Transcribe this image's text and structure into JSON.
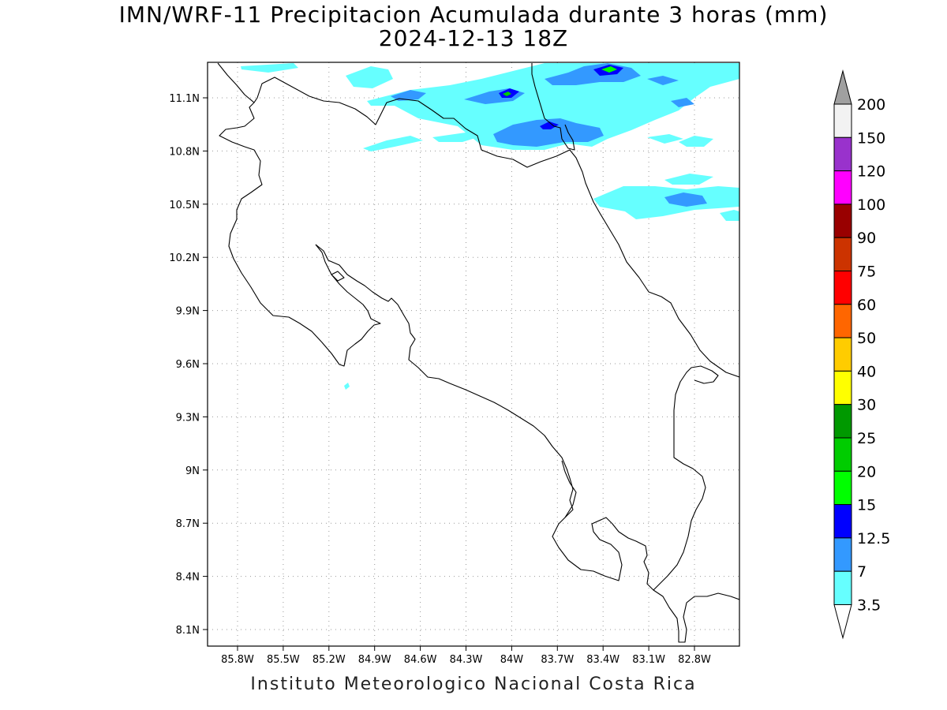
{
  "header": {
    "title": "IMN/WRF-11 Precipitacion Acumulada durante 3 horas (mm)",
    "subtitle": "2024-12-13 18Z"
  },
  "footer": {
    "credit": "Instituto Meteorologico Nacional Costa Rica"
  },
  "map": {
    "lon_ticks": [
      "85.8W",
      "85.5W",
      "85.2W",
      "84.9W",
      "84.6W",
      "84.3W",
      "84W",
      "83.7W",
      "83.4W",
      "83.1W",
      "82.8W"
    ],
    "lat_ticks": [
      "11.1N",
      "10.8N",
      "10.5N",
      "10.2N",
      "9.9N",
      "9.6N",
      "9.3N",
      "9N",
      "8.7N",
      "8.4N",
      "8.1N"
    ],
    "grid": "dotted",
    "coastline_color": "#000000"
  },
  "colorbar": {
    "labels": [
      "200",
      "150",
      "120",
      "100",
      "90",
      "75",
      "60",
      "50",
      "40",
      "30",
      "25",
      "20",
      "15",
      "12.5",
      "7",
      "3.5"
    ],
    "colors": [
      "#f2f2f2",
      "#9932cc",
      "#ff00ff",
      "#990000",
      "#cc3300",
      "#ff0000",
      "#ff6600",
      "#ffcc00",
      "#ffff00",
      "#009900",
      "#00cc00",
      "#00ff00",
      "#0000ff",
      "#3399ff",
      "#66ffff"
    ],
    "top_arrow_color": "#a0a0a0",
    "bottom_arrow_color": "#ffffff"
  }
}
